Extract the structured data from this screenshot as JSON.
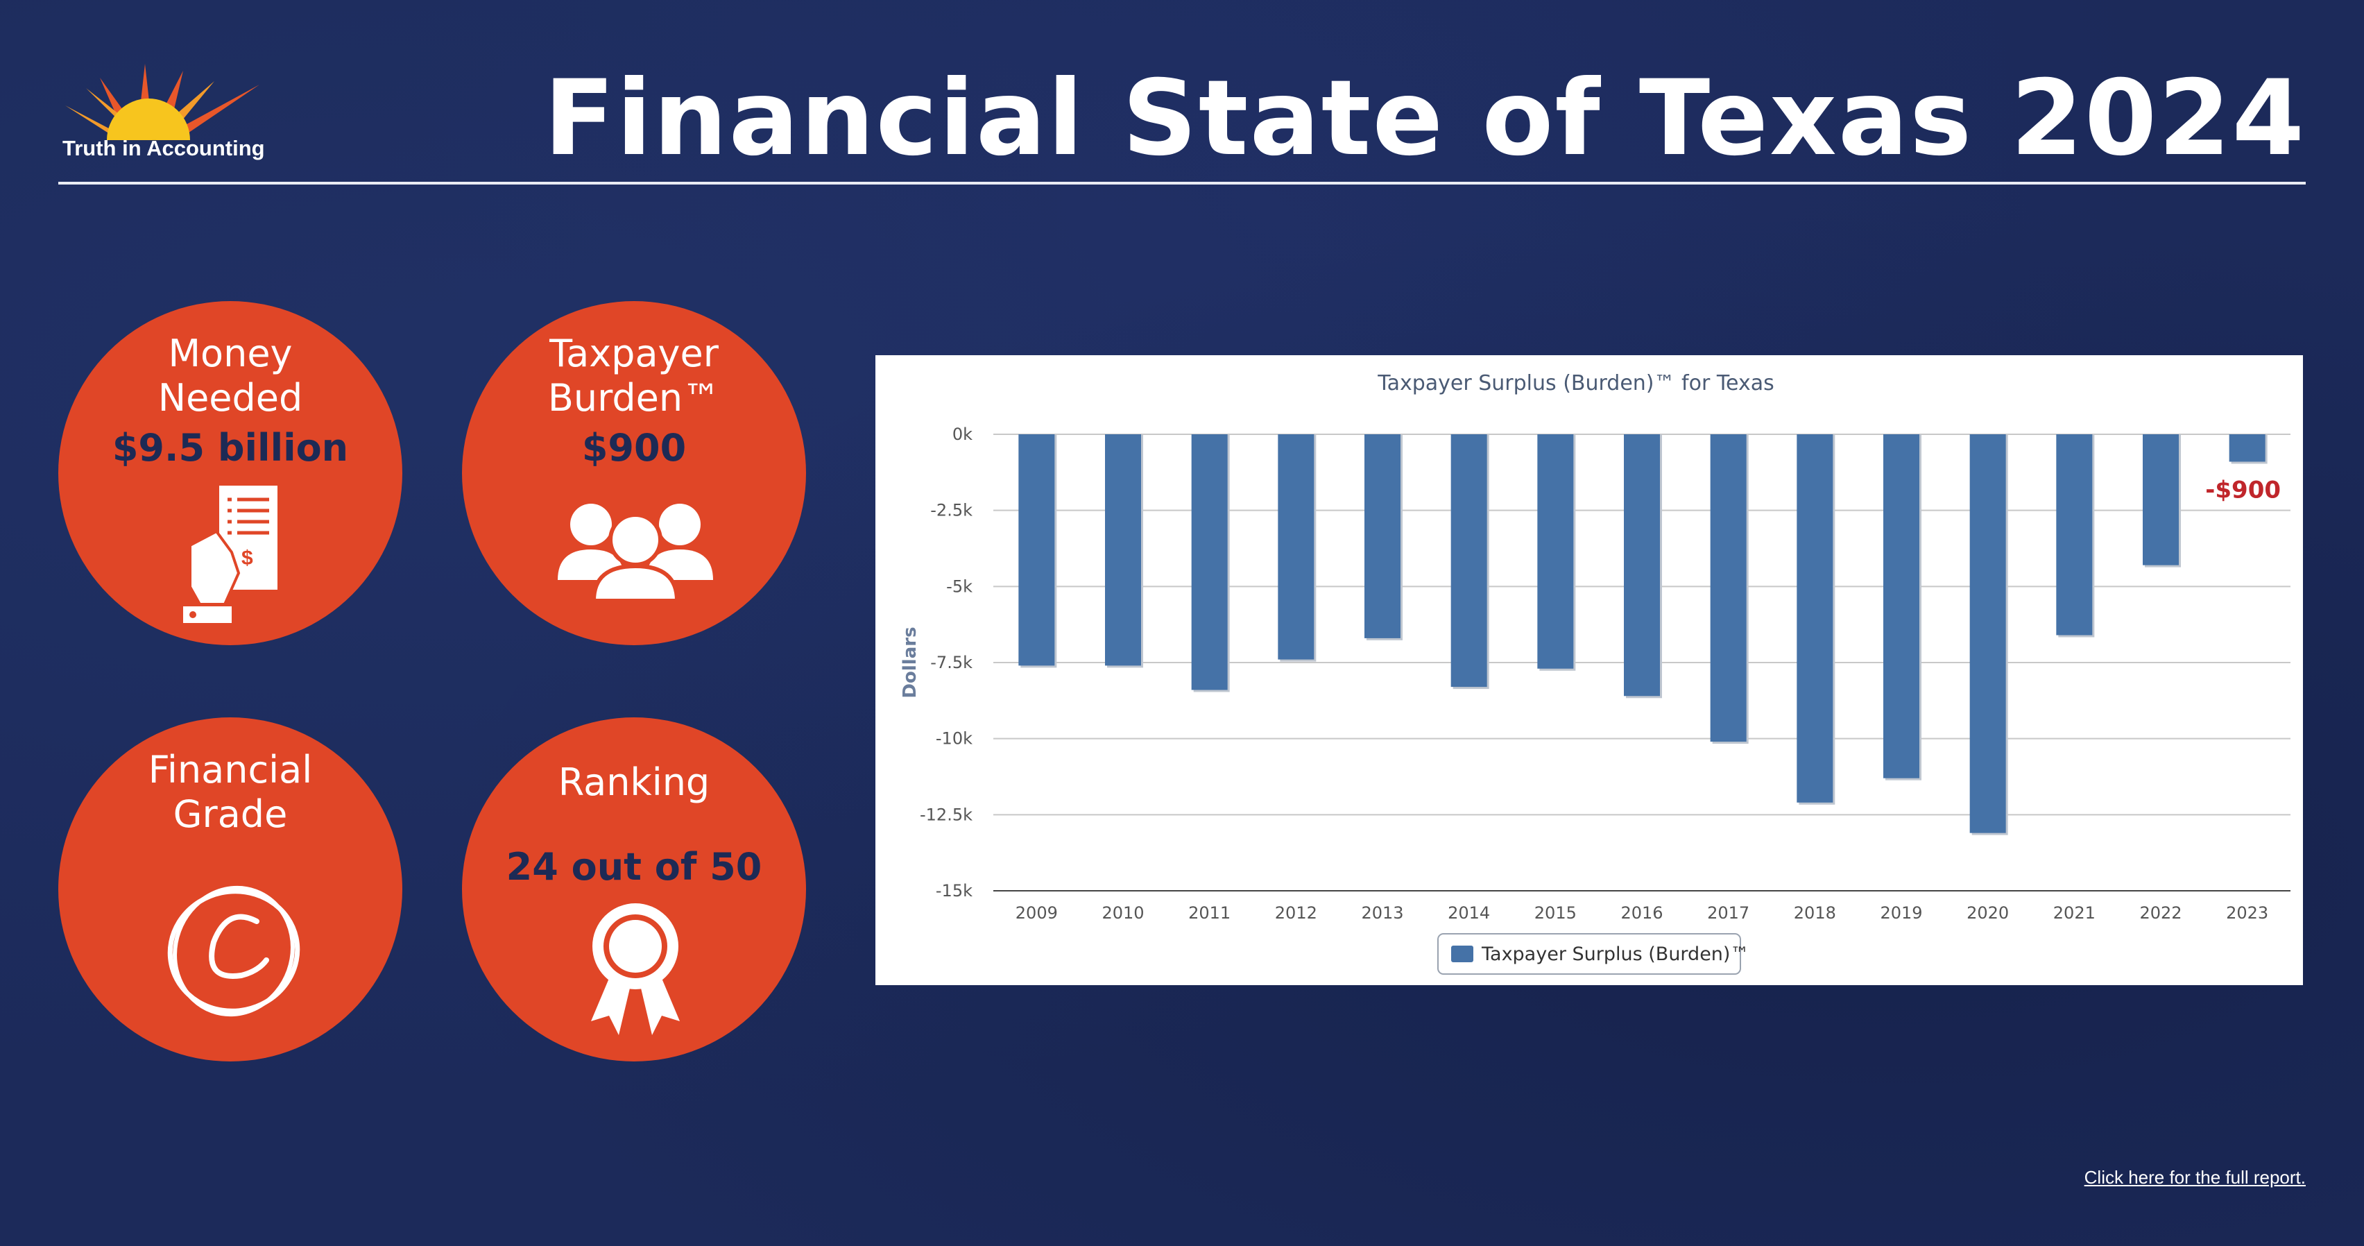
{
  "header": {
    "title": "Financial State of Texas 2024",
    "logo_text": "Truth in Accounting"
  },
  "metrics": {
    "money_needed": {
      "label_line1": "Money",
      "label_line2": "Needed",
      "value": "$9.5 billion",
      "icon": "receipt-hand-icon"
    },
    "taxpayer_burden": {
      "label_line1": "Taxpayer",
      "label_line2": "Burden™",
      "value": "$900",
      "icon": "people-group-icon"
    },
    "financial_grade": {
      "label_line1": "Financial",
      "label_line2": "Grade",
      "value": "C",
      "icon": "circled-grade-icon"
    },
    "ranking": {
      "label": "Ranking",
      "value": "24 out of 50",
      "icon": "award-ribbon-icon"
    }
  },
  "colors": {
    "background": "#1c2a5a",
    "circle": "#e04627",
    "circle_value_text": "#1d2a55",
    "bar": "#4572a7",
    "annotation": "#c0262b"
  },
  "chart_data": {
    "type": "bar",
    "title": "Taxpayer Surplus (Burden)™ for Texas",
    "ylabel": "Dollars",
    "xlabel": "",
    "categories": [
      "2009",
      "2010",
      "2011",
      "2012",
      "2013",
      "2014",
      "2015",
      "2016",
      "2017",
      "2018",
      "2019",
      "2020",
      "2021",
      "2022",
      "2023"
    ],
    "series": [
      {
        "name": "Taxpayer Surplus (Burden)™",
        "values": [
          -7600,
          -7600,
          -8400,
          -7400,
          -6700,
          -8300,
          -7700,
          -8600,
          -10100,
          -12100,
          -11300,
          -13100,
          -6600,
          -4300,
          -900
        ]
      }
    ],
    "ylim": [
      -15000,
      0
    ],
    "yticks": [
      {
        "value": 0,
        "label": "0k"
      },
      {
        "value": -2500,
        "label": "-2.5k"
      },
      {
        "value": -5000,
        "label": "-5k"
      },
      {
        "value": -7500,
        "label": "-7.5k"
      },
      {
        "value": -10000,
        "label": "-10k"
      },
      {
        "value": -12500,
        "label": "-12.5k"
      },
      {
        "value": -15000,
        "label": "-15k"
      }
    ],
    "annotation": {
      "category": "2023",
      "text": "-$900"
    },
    "grid": true,
    "legend": "bottom-center"
  },
  "footer": {
    "link_text": "Click here for the full report."
  }
}
